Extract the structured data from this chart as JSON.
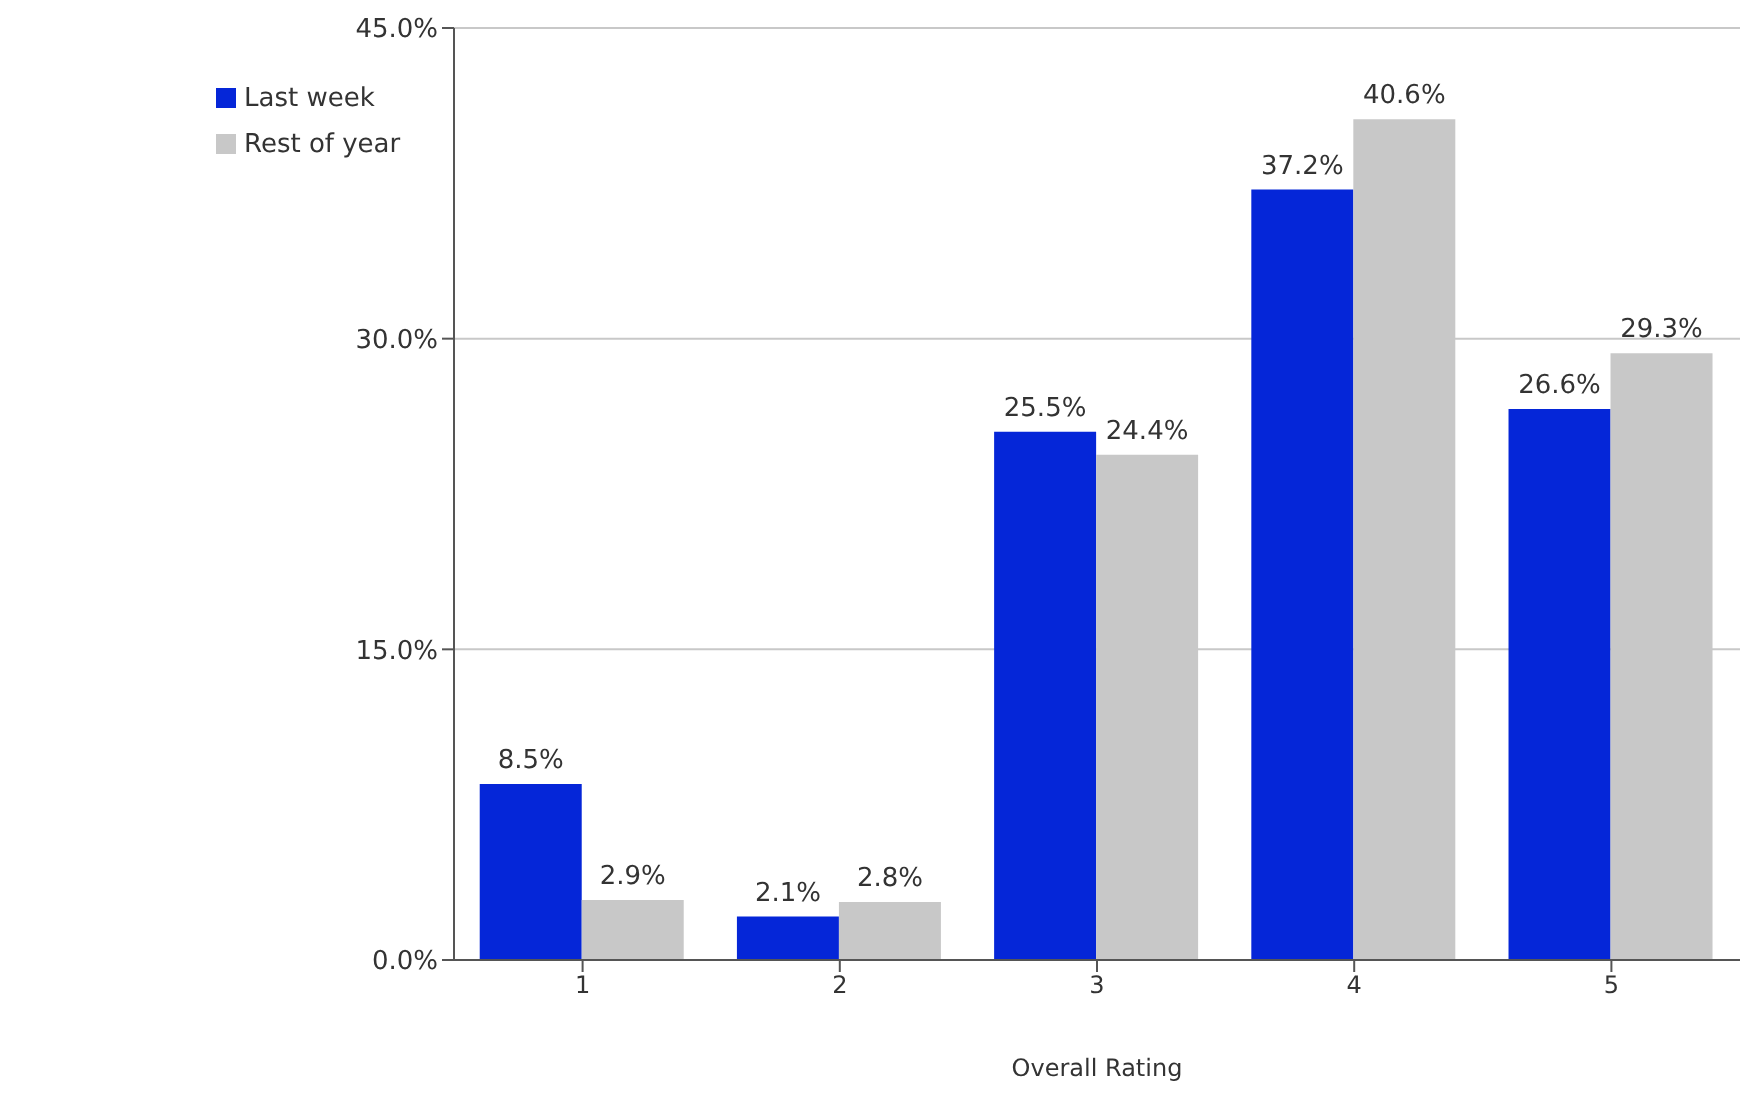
{
  "chart_data": {
    "type": "bar",
    "xlabel": "Overall Rating",
    "categories": [
      "1",
      "2",
      "3",
      "4",
      "5"
    ],
    "series": [
      {
        "name": "Last week",
        "color": "#0526d8",
        "values": [
          8.5,
          2.1,
          25.5,
          37.2,
          26.6
        ],
        "value_labels": [
          "8.5%",
          "2.1%",
          "25.5%",
          "37.2%",
          "26.6%"
        ]
      },
      {
        "name": "Rest of year",
        "color": "#c8c8c8",
        "values": [
          2.9,
          2.8,
          24.4,
          40.6,
          29.3
        ],
        "value_labels": [
          "2.9%",
          "2.8%",
          "24.4%",
          "40.6%",
          "29.3%"
        ]
      }
    ],
    "ylim": [
      0,
      45
    ],
    "yticks": [
      {
        "value": 0,
        "label": "0.0%"
      },
      {
        "value": 15,
        "label": "15.0%"
      },
      {
        "value": 30,
        "label": "30.0%"
      },
      {
        "value": 45,
        "label": "45.0%"
      }
    ],
    "grid": "y",
    "legend": "top left"
  }
}
